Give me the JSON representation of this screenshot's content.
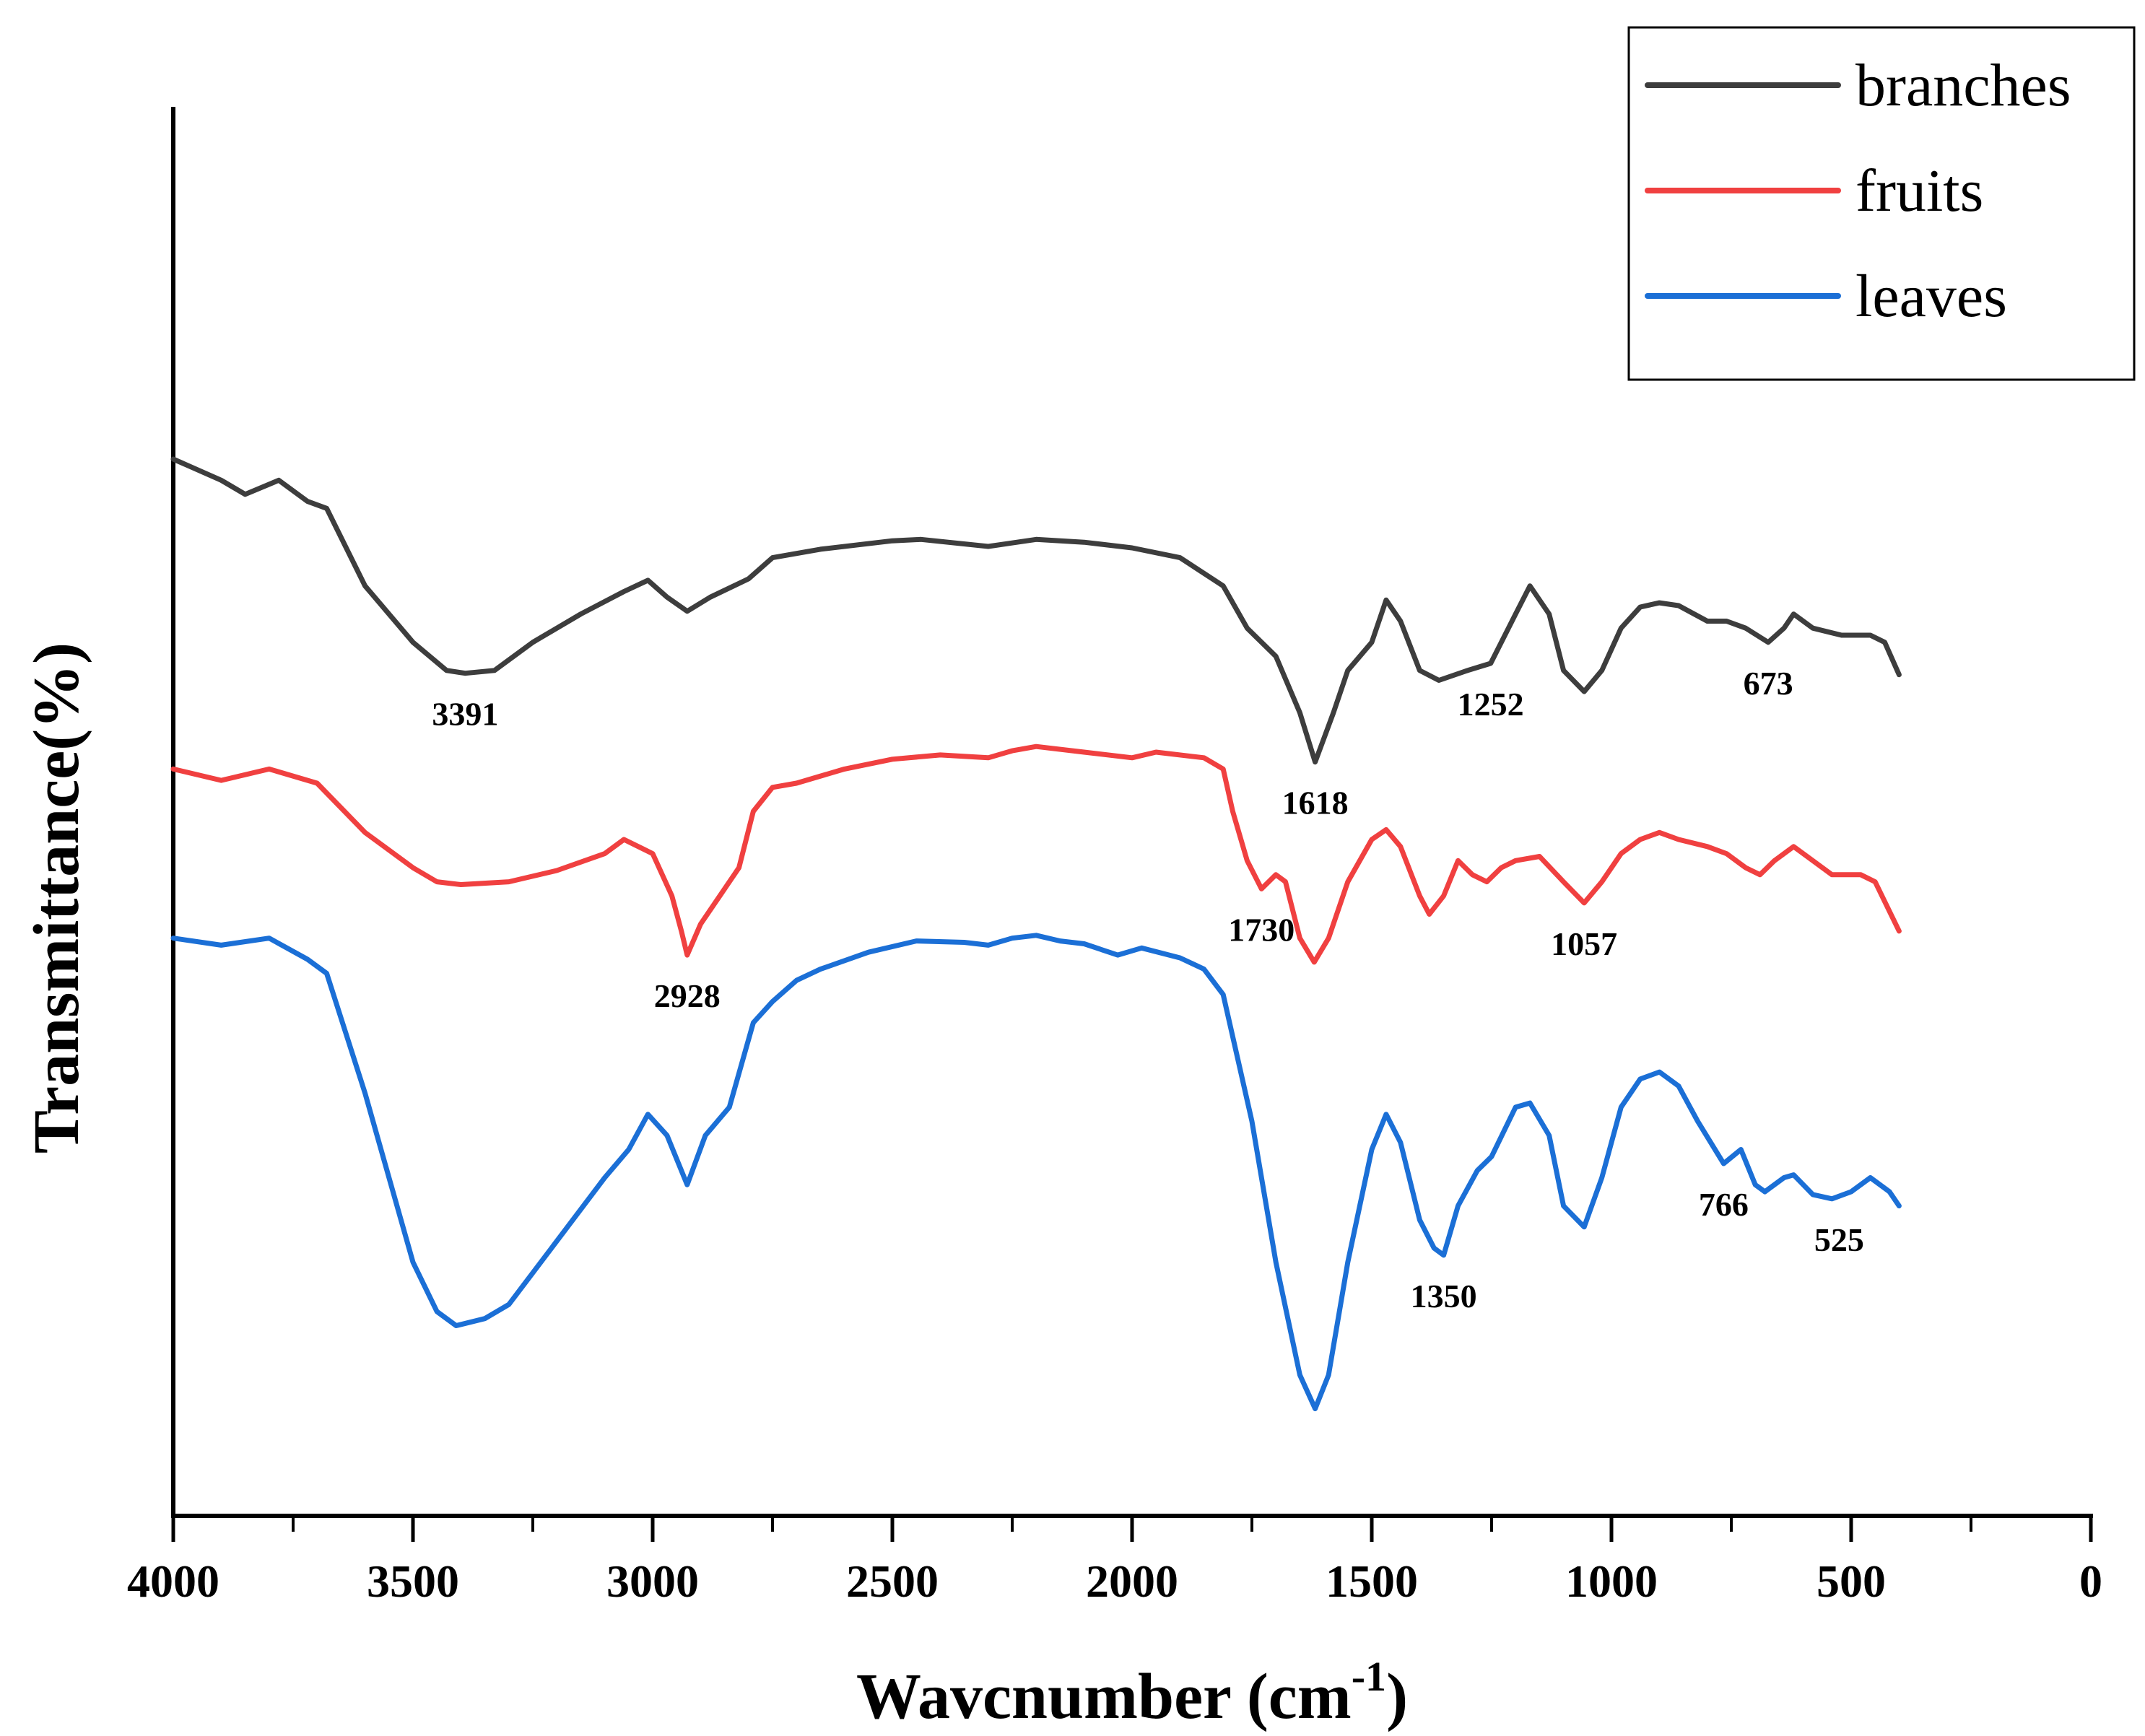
{
  "chart_data": {
    "type": "line",
    "title": "",
    "xlabel": "Wavcnumber (cm",
    "xlabel_superscript": "-1",
    "xlabel_suffix": ")",
    "ylabel": "Transmittance(%)",
    "xlim": [
      4000,
      0
    ],
    "x_reversed": true,
    "xticks": [
      4000,
      3500,
      3000,
      2500,
      2000,
      1500,
      1000,
      500,
      0
    ],
    "minor_xticks": [
      3750,
      3250,
      2750,
      2250,
      1750,
      1250,
      750,
      250
    ],
    "ylim": [
      0,
      100
    ],
    "yticks_shown": false,
    "legend_position": "top-right",
    "series": [
      {
        "name": "branches",
        "color": "#3d3d3d",
        "points": [
          [
            4000,
            75
          ],
          [
            3900,
            73.5
          ],
          [
            3850,
            72.5
          ],
          [
            3780,
            73.5
          ],
          [
            3720,
            72
          ],
          [
            3680,
            71.5
          ],
          [
            3600,
            66
          ],
          [
            3500,
            62
          ],
          [
            3430,
            60
          ],
          [
            3391,
            59.8
          ],
          [
            3330,
            60
          ],
          [
            3250,
            62
          ],
          [
            3150,
            64
          ],
          [
            3060,
            65.6
          ],
          [
            3010,
            66.4
          ],
          [
            2970,
            65.2
          ],
          [
            2928,
            64.2
          ],
          [
            2880,
            65.2
          ],
          [
            2800,
            66.5
          ],
          [
            2750,
            68
          ],
          [
            2650,
            68.6
          ],
          [
            2500,
            69.2
          ],
          [
            2440,
            69.3
          ],
          [
            2300,
            68.8
          ],
          [
            2200,
            69.3
          ],
          [
            2100,
            69.1
          ],
          [
            2000,
            68.7
          ],
          [
            1900,
            68
          ],
          [
            1810,
            66
          ],
          [
            1760,
            63
          ],
          [
            1700,
            61
          ],
          [
            1650,
            57
          ],
          [
            1618,
            53.5
          ],
          [
            1580,
            57
          ],
          [
            1550,
            60
          ],
          [
            1500,
            62
          ],
          [
            1470,
            65
          ],
          [
            1440,
            63.5
          ],
          [
            1400,
            60
          ],
          [
            1360,
            59.3
          ],
          [
            1300,
            60
          ],
          [
            1252,
            60.5
          ],
          [
            1200,
            64
          ],
          [
            1170,
            66
          ],
          [
            1130,
            64
          ],
          [
            1100,
            60
          ],
          [
            1057,
            58.5
          ],
          [
            1020,
            60
          ],
          [
            980,
            63
          ],
          [
            940,
            64.5
          ],
          [
            900,
            64.8
          ],
          [
            860,
            64.6
          ],
          [
            800,
            63.5
          ],
          [
            760,
            63.5
          ],
          [
            720,
            63
          ],
          [
            673,
            62
          ],
          [
            640,
            63
          ],
          [
            620,
            64
          ],
          [
            580,
            63
          ],
          [
            520,
            62.5
          ],
          [
            460,
            62.5
          ],
          [
            430,
            62
          ],
          [
            400,
            59.7
          ]
        ],
        "peaks": [
          {
            "x": 3391,
            "label": "3391"
          },
          {
            "x": 1618,
            "label": "1618"
          },
          {
            "x": 1252,
            "label": "1252"
          },
          {
            "x": 673,
            "label": "673"
          }
        ]
      },
      {
        "name": "fruits",
        "color": "#f04040",
        "points": [
          [
            4000,
            53
          ],
          [
            3900,
            52.2
          ],
          [
            3800,
            53
          ],
          [
            3700,
            52
          ],
          [
            3600,
            48.5
          ],
          [
            3500,
            46
          ],
          [
            3450,
            45
          ],
          [
            3400,
            44.8
          ],
          [
            3300,
            45
          ],
          [
            3200,
            45.8
          ],
          [
            3100,
            47
          ],
          [
            3060,
            48
          ],
          [
            3000,
            47
          ],
          [
            2960,
            44
          ],
          [
            2940,
            41.5
          ],
          [
            2928,
            39.8
          ],
          [
            2900,
            42
          ],
          [
            2860,
            44
          ],
          [
            2820,
            46
          ],
          [
            2790,
            50
          ],
          [
            2750,
            51.7
          ],
          [
            2700,
            52
          ],
          [
            2600,
            53
          ],
          [
            2500,
            53.7
          ],
          [
            2400,
            54
          ],
          [
            2300,
            53.8
          ],
          [
            2250,
            54.3
          ],
          [
            2200,
            54.6
          ],
          [
            2100,
            54.2
          ],
          [
            2000,
            53.8
          ],
          [
            1950,
            54.2
          ],
          [
            1850,
            53.8
          ],
          [
            1810,
            53
          ],
          [
            1790,
            50
          ],
          [
            1760,
            46.5
          ],
          [
            1730,
            44.5
          ],
          [
            1700,
            45.5
          ],
          [
            1680,
            45
          ],
          [
            1650,
            41
          ],
          [
            1620,
            39.3
          ],
          [
            1590,
            41
          ],
          [
            1550,
            45
          ],
          [
            1500,
            48
          ],
          [
            1470,
            48.7
          ],
          [
            1440,
            47.5
          ],
          [
            1400,
            44
          ],
          [
            1380,
            42.7
          ],
          [
            1350,
            44
          ],
          [
            1320,
            46.5
          ],
          [
            1290,
            45.5
          ],
          [
            1260,
            45
          ],
          [
            1230,
            46
          ],
          [
            1200,
            46.5
          ],
          [
            1150,
            46.8
          ],
          [
            1100,
            45
          ],
          [
            1057,
            43.5
          ],
          [
            1020,
            45
          ],
          [
            980,
            47
          ],
          [
            940,
            48
          ],
          [
            900,
            48.5
          ],
          [
            860,
            48
          ],
          [
            800,
            47.5
          ],
          [
            760,
            47
          ],
          [
            720,
            46
          ],
          [
            690,
            45.5
          ],
          [
            660,
            46.5
          ],
          [
            620,
            47.5
          ],
          [
            580,
            46.5
          ],
          [
            540,
            45.5
          ],
          [
            480,
            45.5
          ],
          [
            450,
            45
          ],
          [
            400,
            41.5
          ]
        ],
        "peaks": [
          {
            "x": 2928,
            "label": "2928"
          },
          {
            "x": 1730,
            "label": "1730"
          },
          {
            "x": 1057,
            "label": "1057"
          }
        ]
      },
      {
        "name": "leaves",
        "color": "#1b6fd6",
        "points": [
          [
            4000,
            41
          ],
          [
            3900,
            40.5
          ],
          [
            3800,
            41
          ],
          [
            3720,
            39.5
          ],
          [
            3680,
            38.5
          ],
          [
            3600,
            30
          ],
          [
            3500,
            18
          ],
          [
            3450,
            14.5
          ],
          [
            3410,
            13.5
          ],
          [
            3350,
            14
          ],
          [
            3300,
            15
          ],
          [
            3200,
            19.5
          ],
          [
            3100,
            24
          ],
          [
            3050,
            26
          ],
          [
            3010,
            28.5
          ],
          [
            2970,
            27
          ],
          [
            2928,
            23.5
          ],
          [
            2890,
            27
          ],
          [
            2840,
            29
          ],
          [
            2790,
            35
          ],
          [
            2750,
            36.5
          ],
          [
            2700,
            38
          ],
          [
            2650,
            38.8
          ],
          [
            2550,
            40
          ],
          [
            2450,
            40.8
          ],
          [
            2350,
            40.7
          ],
          [
            2300,
            40.5
          ],
          [
            2250,
            41
          ],
          [
            2200,
            41.2
          ],
          [
            2150,
            40.8
          ],
          [
            2100,
            40.6
          ],
          [
            2030,
            39.8
          ],
          [
            1980,
            40.3
          ],
          [
            1900,
            39.6
          ],
          [
            1850,
            38.8
          ],
          [
            1810,
            37
          ],
          [
            1750,
            28
          ],
          [
            1700,
            18
          ],
          [
            1650,
            10
          ],
          [
            1618,
            7.6
          ],
          [
            1590,
            10
          ],
          [
            1550,
            18
          ],
          [
            1500,
            26
          ],
          [
            1470,
            28.5
          ],
          [
            1440,
            26.5
          ],
          [
            1400,
            21
          ],
          [
            1370,
            19
          ],
          [
            1350,
            18.5
          ],
          [
            1320,
            22
          ],
          [
            1280,
            24.5
          ],
          [
            1250,
            25.5
          ],
          [
            1200,
            29
          ],
          [
            1170,
            29.3
          ],
          [
            1130,
            27
          ],
          [
            1100,
            22
          ],
          [
            1057,
            20.5
          ],
          [
            1020,
            24
          ],
          [
            980,
            29
          ],
          [
            940,
            31
          ],
          [
            900,
            31.5
          ],
          [
            860,
            30.5
          ],
          [
            820,
            28
          ],
          [
            766,
            25
          ],
          [
            730,
            26
          ],
          [
            700,
            23.5
          ],
          [
            680,
            23
          ],
          [
            640,
            24
          ],
          [
            620,
            24.2
          ],
          [
            580,
            22.8
          ],
          [
            540,
            22.5
          ],
          [
            500,
            23
          ],
          [
            460,
            24
          ],
          [
            420,
            23
          ],
          [
            400,
            22
          ]
        ],
        "peaks": [
          {
            "x": 1350,
            "label": "1350"
          },
          {
            "x": 766,
            "label": "766"
          },
          {
            "x": 525,
            "label": "525"
          }
        ]
      }
    ]
  }
}
